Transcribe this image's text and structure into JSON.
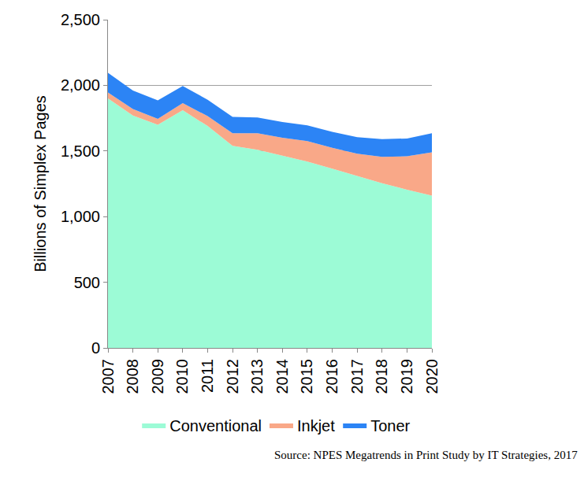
{
  "chart_data": {
    "type": "area",
    "y_label": "Billions of Simplex Pages",
    "annotations": [
      "Source: NPES Megatrends in Print Study by IT Strategies, 2017"
    ],
    "x": [
      2007,
      2008,
      2009,
      2010,
      2011,
      2012,
      2013,
      2014,
      2015,
      2016,
      2017,
      2018,
      2019,
      2020
    ],
    "xlim": [
      2007,
      2020
    ],
    "xticks": [
      2007,
      2008,
      2009,
      2010,
      2011,
      2012,
      2013,
      2014,
      2015,
      2016,
      2017,
      2018,
      2019,
      2020
    ],
    "ylim": [
      0,
      2500
    ],
    "yticks": [
      0,
      500,
      {
        "value": 1000,
        "label": "1,000"
      },
      {
        "value": 1500,
        "label": "1,500"
      },
      {
        "value": 2000,
        "label": "2,000"
      },
      {
        "value": 2500,
        "label": "2,500"
      }
    ],
    "stacked": true,
    "grid": true,
    "legend": "bottom",
    "series": [
      {
        "name": "Conventional",
        "color": "#9cfbd6",
        "values": [
          1900,
          1770,
          1700,
          1810,
          1690,
          1540,
          1510,
          1465,
          1420,
          1365,
          1310,
          1255,
          1205,
          1160
        ]
      },
      {
        "name": "Inkjet",
        "color": "#f9a888",
        "values": [
          45,
          50,
          45,
          55,
          75,
          95,
          125,
          135,
          155,
          160,
          170,
          200,
          255,
          330
        ]
      },
      {
        "name": "Toner",
        "color": "#2c84f5",
        "values": [
          150,
          140,
          140,
          130,
          125,
          125,
          120,
          120,
          120,
          120,
          125,
          135,
          135,
          145
        ]
      }
    ]
  }
}
